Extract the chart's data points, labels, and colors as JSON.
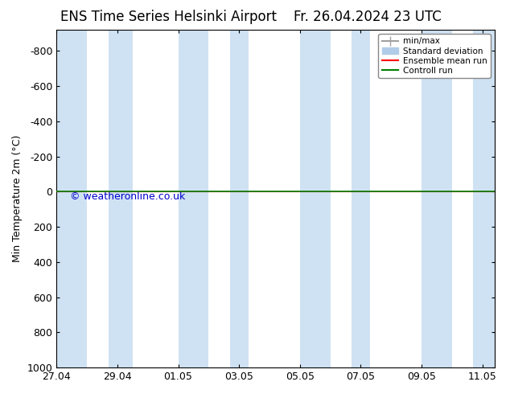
{
  "title_left": "ENS Time Series Helsinki Airport",
  "title_right": "Fr. 26.04.2024 23 UTC",
  "ylabel": "Min Temperature 2m (°C)",
  "watermark": "© weatheronline.co.uk",
  "ylim_top": -920,
  "ylim_bottom": 1000,
  "yticks": [
    -800,
    -600,
    -400,
    -200,
    0,
    200,
    400,
    600,
    800,
    1000
  ],
  "x_dates": [
    "27.04",
    "29.04",
    "01.05",
    "03.05",
    "05.05",
    "07.05",
    "09.05",
    "11.05"
  ],
  "x_values": [
    0,
    2,
    4,
    6,
    8,
    10,
    12,
    14
  ],
  "xlim": [
    0,
    14.4
  ],
  "shaded_spans": [
    [
      0.0,
      1.0
    ],
    [
      1.7,
      2.5
    ],
    [
      4.0,
      5.0
    ],
    [
      5.7,
      6.3
    ],
    [
      8.0,
      9.0
    ],
    [
      9.7,
      10.3
    ],
    [
      12.0,
      13.0
    ],
    [
      13.7,
      14.4
    ]
  ],
  "shaded_color": "#cfe2f3",
  "control_run_y": 0,
  "control_run_color": "#008000",
  "ensemble_mean_color": "#ff0000",
  "minmax_color": "#a0a0a0",
  "std_dev_color": "#b0cce8",
  "legend_labels": [
    "min/max",
    "Standard deviation",
    "Ensemble mean run",
    "Controll run"
  ],
  "background_color": "#ffffff",
  "plot_background": "#ffffff",
  "tick_label_size": 9,
  "title_fontsize": 12,
  "watermark_color": "#0000cc"
}
